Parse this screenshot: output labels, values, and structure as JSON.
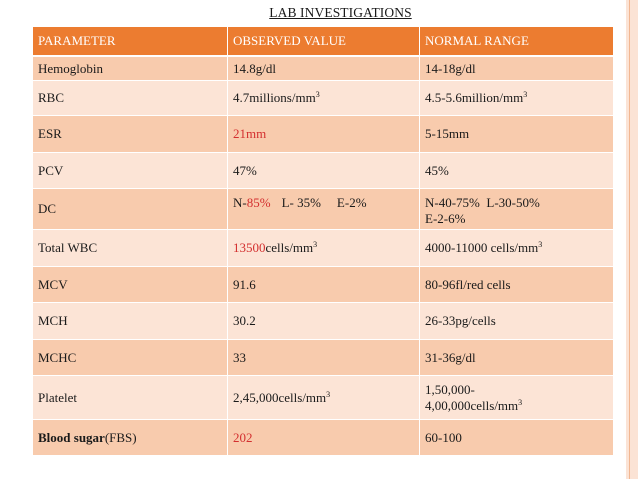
{
  "title": "LAB INVESTIGATIONS",
  "headers": [
    "PARAMETER",
    "OBSERVED VALUE",
    "NORMAL RANGE"
  ],
  "rows": {
    "hb": {
      "param": "Hemoglobin",
      "observed": "14.8g/dl",
      "normal": "14-18g/dl"
    },
    "rbc": {
      "param": "RBC",
      "observed": "4.7millions/mm",
      "observed_sup": "3",
      "normal": "4.5-5.6million/mm",
      "normal_sup": "3"
    },
    "esr": {
      "param": "ESR",
      "observed": "21mm",
      "normal": "5-15mm"
    },
    "pcv": {
      "param": "PCV",
      "observed": "47%",
      "normal": "45%"
    },
    "dc": {
      "param": "DC",
      "observed_n_prefix": "N-",
      "observed_n_value": "85%",
      "observed_l": "L- 35%",
      "observed_e": "E-2%",
      "normal_line1": "N-40-75%  L-30-50%",
      "normal_line2": "E-2-6%"
    },
    "wbc": {
      "param": "Total WBC",
      "observed_value": "13500",
      "observed_unit": "cells/mm",
      "observed_sup": "3",
      "normal": "4000-11000 cells/mm",
      "normal_sup": "3"
    },
    "mcv": {
      "param": "MCV",
      "observed": "91.6",
      "normal": "80-96fl/red cells"
    },
    "mch": {
      "param": "MCH",
      "observed": "30.2",
      "normal": "26-33pg/cells"
    },
    "mchc": {
      "param": "MCHC",
      "observed": "33",
      "normal": "31-36g/dl"
    },
    "plt": {
      "param": "Platelet",
      "observed": "2,45,000cells/mm",
      "observed_sup": "3",
      "normal_line1": "1,50,000-",
      "normal_line2": "4,00,000cells/mm",
      "normal_sup": "3"
    },
    "bs": {
      "param_bold": "Blood sugar",
      "param_rest": "(FBS)",
      "observed": "202",
      "normal": "60-100"
    }
  },
  "colors": {
    "header_bg": "#ec7c30",
    "row_dark": "#f8cbad",
    "row_light": "#fce4d6",
    "abnormal_text": "#d32f2f",
    "side_border": "#fbe3d5"
  }
}
